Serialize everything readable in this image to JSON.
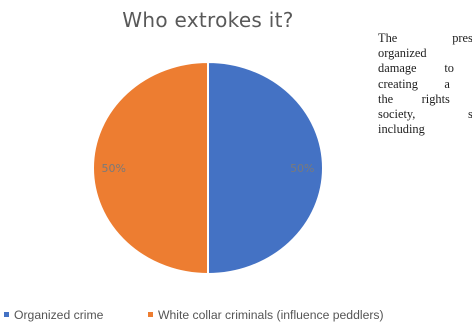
{
  "chart_data": {
    "type": "pie",
    "title": "Who extrokes it?",
    "categories": [
      "Organized crime",
      "White collar criminals (influence peddlers)"
    ],
    "values": [
      50,
      50
    ],
    "value_labels": [
      "50%",
      "50%"
    ],
    "colors": [
      "#4472c4",
      "#ed7d31"
    ],
    "start_angle_deg": 0,
    "direction": "clockwise",
    "legend_position": "bottom"
  },
  "side_text": {
    "lines": [
      "The present",
      "organized cr",
      "damage to b",
      "creating a cu",
      "the rights er",
      "society, sinc",
      "including so"
    ]
  }
}
